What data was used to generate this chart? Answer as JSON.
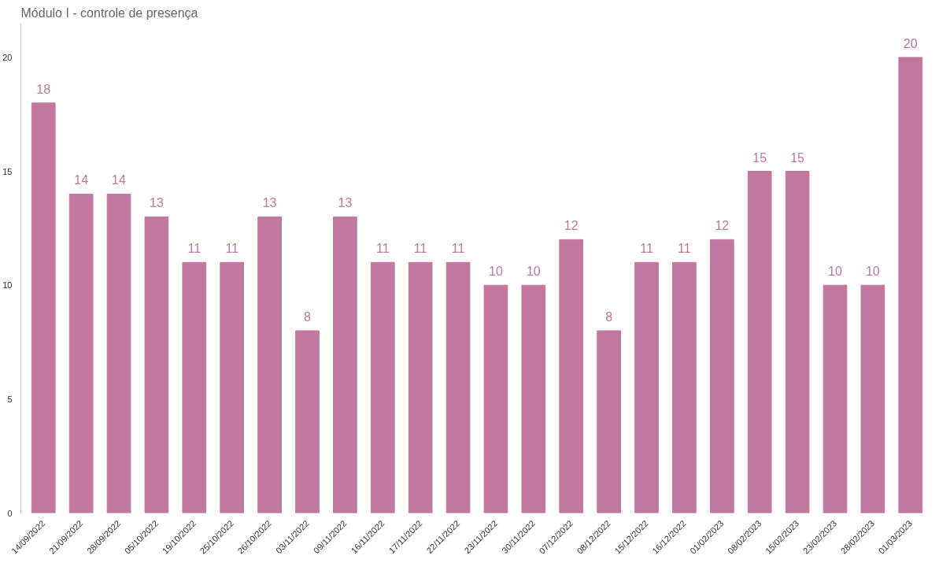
{
  "chart_data": {
    "type": "bar",
    "title": "Módulo I - controle de presença",
    "categories": [
      "14/09/2022",
      "21/09/2022",
      "28/09/2022",
      "05/10/2022",
      "19/10/2022",
      "25/10/2022",
      "26/10/2022",
      "03/11/2022",
      "09/11/2022",
      "16/11/2022",
      "17/11/2022",
      "22/11/2022",
      "23/11/2022",
      "30/11/2022",
      "07/12/2022",
      "08/12/2022",
      "15/12/2022",
      "16/12/2022",
      "01/02/2023",
      "08/02/2023",
      "15/02/2023",
      "23/02/2023",
      "28/02/2023",
      "01/03/2023"
    ],
    "values": [
      18,
      14,
      14,
      13,
      11,
      11,
      13,
      8,
      13,
      11,
      11,
      11,
      10,
      10,
      12,
      8,
      11,
      11,
      12,
      15,
      15,
      10,
      10,
      20
    ],
    "color": "#c0789e",
    "ylim": [
      0,
      21.5
    ],
    "yticks": [
      0,
      5,
      10,
      15,
      20
    ],
    "grid": false,
    "data_labels": true
  }
}
